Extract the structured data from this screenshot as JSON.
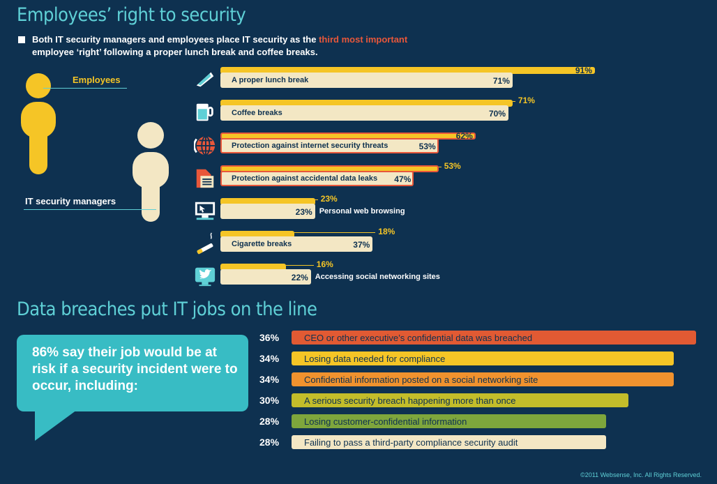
{
  "section1": {
    "title": "Employees’ right to security",
    "intro_before": "Both IT security managers and employees place IT security as the ",
    "intro_highlight": "third most important",
    "intro_after": "employee ‘right’ following a proper lunch break and coffee breaks.",
    "legend_employees": "Employees",
    "legend_it": "IT security managers"
  },
  "section2": {
    "title": "Data breaches put IT jobs on the line",
    "bubble_text": "86% say their job would be at risk if a security incident were to occur, including:"
  },
  "copyright": "©2011 Websense, Inc. All Rights Reserved.",
  "colors": {
    "background": "#0e3150",
    "employees": "#f5c526",
    "it_managers": "#f3e7c4",
    "accent": "#5fd0d6",
    "highlight": "#e8573a"
  },
  "chart_data": [
    {
      "type": "bar",
      "orientation": "horizontal",
      "title": "Employees’ right to security",
      "categories": [
        "A proper lunch break",
        "Coffee breaks",
        "Protection against internet security threats",
        "Protection against accidental data leaks",
        "Personal web browsing",
        "Cigarette breaks",
        "Accessing social networking sites"
      ],
      "icons": [
        "sandwich-icon",
        "coffee-cup-icon",
        "globe-icon",
        "document-icon",
        "computer-monitor-icon",
        "cigarette-icon",
        "twitter-bird-icon"
      ],
      "series": [
        {
          "name": "Employees",
          "values": [
            91,
            71,
            62,
            53,
            23,
            18,
            16
          ],
          "labels": [
            "91%",
            "71%",
            "62%",
            "53%",
            "23%",
            "18%",
            "16%"
          ]
        },
        {
          "name": "IT security managers",
          "values": [
            71,
            70,
            53,
            47,
            23,
            37,
            22
          ],
          "labels": [
            "71%",
            "70%",
            "53%",
            "47%",
            "23%",
            "37%",
            "22%"
          ]
        }
      ],
      "highlighted": [
        false,
        false,
        true,
        true,
        false,
        false,
        false
      ],
      "xlim": [
        0,
        100
      ]
    },
    {
      "type": "bar",
      "orientation": "horizontal",
      "title": "Data breaches put IT jobs on the line",
      "categories": [
        "CEO or other executive’s confidential data was breached",
        "Losing data needed for compliance",
        "Confidential information posted on a social networking site",
        "A serious security breach happening more than once",
        "Losing customer-confidential information",
        "Failing to pass a third-party compliance security audit"
      ],
      "values": [
        36,
        34,
        34,
        30,
        28,
        28
      ],
      "labels": [
        "36%",
        "34%",
        "34%",
        "30%",
        "28%",
        "28%"
      ],
      "bar_colors": [
        "#e15a33",
        "#f5c526",
        "#f0922e",
        "#c3bd2a",
        "#7ea63c",
        "#f3e7c4"
      ],
      "xlim": [
        0,
        36
      ]
    }
  ]
}
